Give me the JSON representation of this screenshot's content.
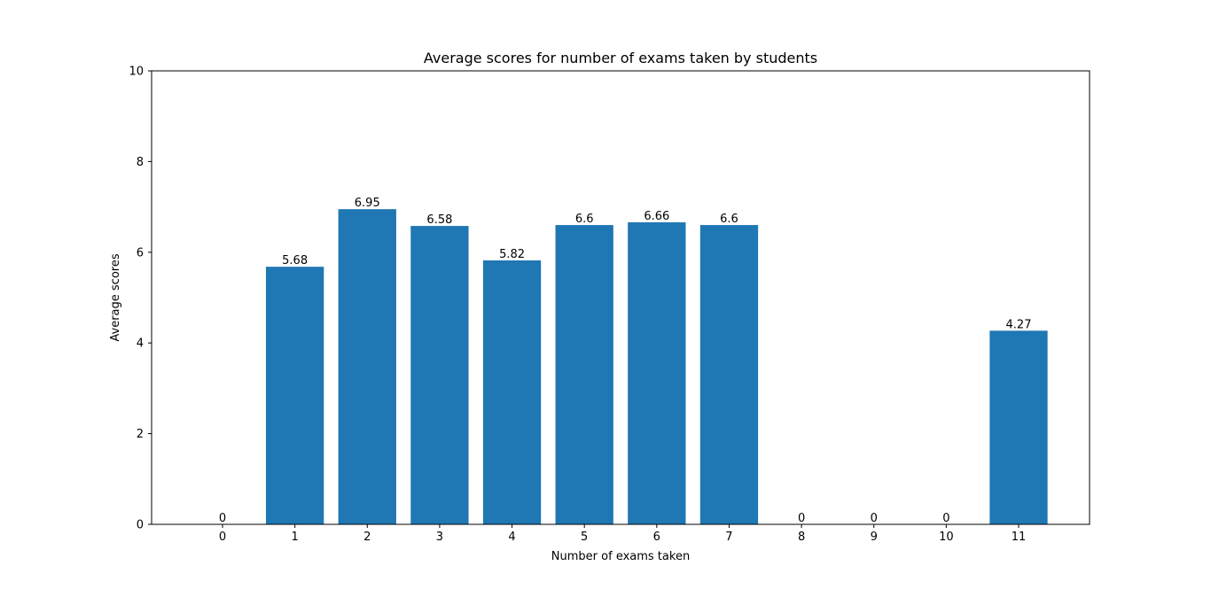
{
  "chart_data": {
    "type": "bar",
    "title": "Average scores for number of exams taken by students",
    "xlabel": "Number of exams taken",
    "ylabel": "Average scores",
    "categories": [
      "0",
      "1",
      "2",
      "3",
      "4",
      "5",
      "6",
      "7",
      "8",
      "9",
      "10",
      "11"
    ],
    "values": [
      0,
      5.68,
      6.95,
      6.58,
      5.82,
      6.6,
      6.66,
      6.6,
      0,
      0,
      0,
      4.27
    ],
    "data_labels": [
      "0",
      "5.68",
      "6.95",
      "6.58",
      "5.82",
      "6.6",
      "6.66",
      "6.6",
      "0",
      "0",
      "0",
      "4.27"
    ],
    "ylim": [
      0,
      10
    ],
    "yticks": [
      0,
      2,
      4,
      6,
      8,
      10
    ],
    "ytick_labels": [
      "0",
      "2",
      "4",
      "6",
      "8",
      "10"
    ],
    "grid": false,
    "bar_color": "#1f77b4"
  }
}
